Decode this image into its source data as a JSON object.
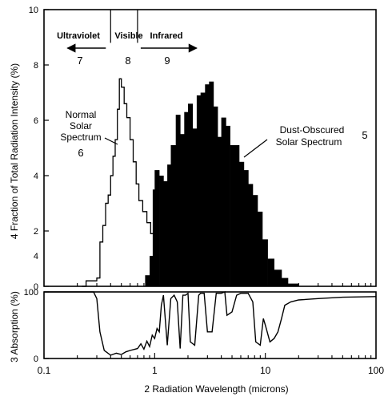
{
  "chart_data": [
    {
      "type": "bar",
      "panel": "spectrum",
      "ylabel": "Fraction of Total Radiation Intensity",
      "ylabel_unit": "(%)",
      "ylabel_index": "4",
      "x_scale": "log",
      "xlim": [
        0.1,
        100
      ],
      "ylim": [
        0,
        10
      ],
      "yticks": [
        "0",
        "2",
        "4",
        "6",
        "8",
        "10"
      ],
      "extra_ytick": {
        "label": "4",
        "value": 1.1
      },
      "regions": [
        {
          "label": "Ultraviolet",
          "number": "7",
          "x_from": 0.4,
          "x_to": 0.2,
          "arrow": "left"
        },
        {
          "label": "Visible",
          "number": "8",
          "x_from": 0.4,
          "x_to": 0.7,
          "arrow": "none"
        },
        {
          "label": "Infrared",
          "number": "9",
          "x_from": 0.7,
          "x_to": 1.4,
          "arrow": "right"
        }
      ],
      "region_boundaries": [
        0.4,
        0.7
      ],
      "series": [
        {
          "name": "Normal Solar Spectrum",
          "index": "6",
          "style": "outline",
          "steps": [
            [
              0.22,
              0.0
            ],
            [
              0.24,
              0.2
            ],
            [
              0.28,
              0.2
            ],
            [
              0.3,
              0.3
            ],
            [
              0.32,
              1.6
            ],
            [
              0.34,
              2.2
            ],
            [
              0.36,
              3.0
            ],
            [
              0.38,
              3.3
            ],
            [
              0.4,
              4.0
            ],
            [
              0.42,
              4.7
            ],
            [
              0.44,
              5.3
            ],
            [
              0.46,
              6.4
            ],
            [
              0.48,
              7.5
            ],
            [
              0.5,
              7.2
            ],
            [
              0.53,
              6.6
            ],
            [
              0.56,
              6.1
            ],
            [
              0.6,
              5.3
            ],
            [
              0.64,
              4.5
            ],
            [
              0.68,
              3.7
            ],
            [
              0.72,
              3.1
            ],
            [
              0.78,
              2.7
            ],
            [
              0.85,
              2.3
            ],
            [
              0.92,
              1.9
            ],
            [
              1.0,
              0.0
            ]
          ]
        },
        {
          "name": "Dust-Obscured Solar Spectrum",
          "index": "5",
          "style": "filled",
          "steps": [
            [
              0.82,
              0.4
            ],
            [
              0.9,
              1.1
            ],
            [
              0.96,
              3.5
            ],
            [
              1.0,
              4.2
            ],
            [
              1.1,
              4.0
            ],
            [
              1.2,
              3.8
            ],
            [
              1.3,
              4.4
            ],
            [
              1.4,
              5.1
            ],
            [
              1.55,
              6.2
            ],
            [
              1.7,
              5.5
            ],
            [
              1.85,
              6.3
            ],
            [
              2.0,
              6.6
            ],
            [
              2.2,
              5.7
            ],
            [
              2.4,
              6.9
            ],
            [
              2.6,
              7.0
            ],
            [
              2.85,
              7.3
            ],
            [
              3.1,
              7.4
            ],
            [
              3.4,
              6.5
            ],
            [
              3.7,
              5.4
            ],
            [
              4.0,
              6.1
            ],
            [
              4.4,
              5.8
            ],
            [
              4.8,
              5.1
            ],
            [
              5.3,
              5.1
            ],
            [
              5.8,
              4.5
            ],
            [
              6.4,
              4.2
            ],
            [
              7.0,
              3.7
            ],
            [
              7.7,
              3.3
            ],
            [
              8.5,
              2.7
            ],
            [
              9.4,
              1.7
            ],
            [
              10.5,
              1.0
            ],
            [
              12.0,
              0.6
            ],
            [
              14.0,
              0.3
            ],
            [
              16.0,
              0.1
            ],
            [
              20.0,
              0.0
            ]
          ]
        }
      ]
    },
    {
      "type": "line",
      "panel": "absorption",
      "ylabel": "Absorption",
      "ylabel_unit": "(%)",
      "ylabel_index": "3",
      "x_scale": "log",
      "xlim": [
        0.1,
        100
      ],
      "ylim": [
        0,
        100
      ],
      "yticks": [
        "0",
        "100"
      ],
      "xlabel": "Radiation Wavelength",
      "xlabel_unit": "(microns)",
      "xlabel_index": "2",
      "xticks": [
        "0.1",
        "1",
        "10",
        "100"
      ],
      "series": [
        {
          "points": [
            [
              0.1,
              100
            ],
            [
              0.28,
              100
            ],
            [
              0.3,
              90
            ],
            [
              0.32,
              40
            ],
            [
              0.35,
              12
            ],
            [
              0.4,
              5
            ],
            [
              0.45,
              8
            ],
            [
              0.5,
              6
            ],
            [
              0.55,
              10
            ],
            [
              0.6,
              12
            ],
            [
              0.7,
              15
            ],
            [
              0.75,
              22
            ],
            [
              0.8,
              14
            ],
            [
              0.85,
              26
            ],
            [
              0.9,
              18
            ],
            [
              0.95,
              35
            ],
            [
              1.0,
              30
            ],
            [
              1.05,
              45
            ],
            [
              1.1,
              40
            ],
            [
              1.15,
              80
            ],
            [
              1.2,
              95
            ],
            [
              1.3,
              20
            ],
            [
              1.4,
              90
            ],
            [
              1.5,
              95
            ],
            [
              1.6,
              85
            ],
            [
              1.7,
              15
            ],
            [
              1.8,
              95
            ],
            [
              1.9,
              95
            ],
            [
              2.0,
              98
            ],
            [
              2.1,
              25
            ],
            [
              2.3,
              20
            ],
            [
              2.5,
              95
            ],
            [
              2.6,
              98
            ],
            [
              2.8,
              98
            ],
            [
              3.0,
              40
            ],
            [
              3.3,
              40
            ],
            [
              3.6,
              98
            ],
            [
              4.0,
              98
            ],
            [
              4.3,
              100
            ],
            [
              4.5,
              65
            ],
            [
              5.0,
              70
            ],
            [
              5.5,
              95
            ],
            [
              6.0,
              98
            ],
            [
              7.0,
              98
            ],
            [
              7.7,
              85
            ],
            [
              8.2,
              25
            ],
            [
              9.0,
              20
            ],
            [
              9.6,
              60
            ],
            [
              10.0,
              50
            ],
            [
              11.0,
              25
            ],
            [
              12.0,
              30
            ],
            [
              13.0,
              40
            ],
            [
              14.0,
              60
            ],
            [
              15.0,
              80
            ],
            [
              17.0,
              85
            ],
            [
              20.0,
              88
            ],
            [
              30.0,
              90
            ],
            [
              50.0,
              92
            ],
            [
              100.0,
              93
            ]
          ]
        }
      ]
    }
  ]
}
